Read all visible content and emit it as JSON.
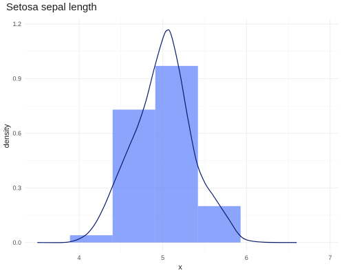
{
  "chart_data": {
    "type": "histogram",
    "title": "Setosa sepal length",
    "xlabel": "x",
    "ylabel": "density",
    "xlim": [
      3.35,
      7.1
    ],
    "ylim": [
      -0.05,
      1.23
    ],
    "x_ticks": [
      4,
      5,
      6,
      7
    ],
    "y_ticks": [
      0.0,
      0.3,
      0.6,
      0.9,
      1.2
    ],
    "y_tick_labels": [
      "0.0",
      "0.3",
      "0.6",
      "0.9",
      "1.2"
    ],
    "grid": true,
    "legend": "none",
    "bar_color": "#6e8ffb",
    "bar_opacity": 0.8,
    "line_color": "#0a1a6e",
    "bins": [
      {
        "x0": 3.89,
        "x1": 4.4,
        "density": 0.04
      },
      {
        "x0": 4.4,
        "x1": 4.91,
        "density": 0.73
      },
      {
        "x0": 4.91,
        "x1": 5.42,
        "density": 0.97
      },
      {
        "x0": 5.42,
        "x1": 5.93,
        "density": 0.2
      }
    ],
    "density_curve": {
      "x": [
        3.5,
        3.8,
        3.9,
        4.0,
        4.1,
        4.2,
        4.3,
        4.4,
        4.5,
        4.6,
        4.7,
        4.8,
        4.9,
        5.0,
        5.05,
        5.1,
        5.2,
        5.3,
        5.4,
        5.5,
        5.6,
        5.7,
        5.8,
        5.9,
        6.0,
        6.2,
        6.6
      ],
      "y": [
        0.0,
        0.0,
        0.005,
        0.02,
        0.05,
        0.11,
        0.2,
        0.31,
        0.42,
        0.53,
        0.64,
        0.78,
        0.96,
        1.12,
        1.165,
        1.14,
        0.94,
        0.68,
        0.45,
        0.33,
        0.26,
        0.19,
        0.12,
        0.05,
        0.015,
        0.002,
        0.0
      ]
    }
  }
}
